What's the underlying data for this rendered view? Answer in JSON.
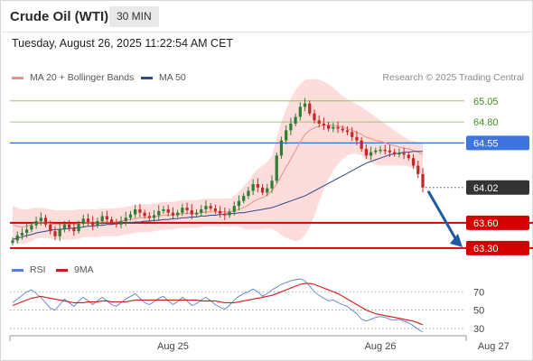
{
  "header": {
    "title": "Crude Oil (WTI)",
    "timeframe": "30 MIN"
  },
  "timestamp": "Tuesday, August 26, 2025 11:22:54 AM CET",
  "legend": {
    "main": [
      {
        "label": "MA 20 + Bollinger Bands",
        "color": "#e9908a"
      },
      {
        "label": "MA 50",
        "color": "#2d4a8c"
      }
    ],
    "rsi": [
      {
        "label": "RSI",
        "color": "#5b7fd6"
      },
      {
        "label": "9MA",
        "color": "#d01c1c"
      }
    ]
  },
  "credit": "Research © 2025 Trading Central",
  "colors": {
    "up": "#2e7d32",
    "down": "#c62828",
    "support": "#d50000",
    "resistance": "#7cbf4b",
    "pivot": "#3a6fd8",
    "band": "#fbd5d2",
    "last": "#333333"
  },
  "chart_data": [
    {
      "type": "candlestick",
      "title": "Crude Oil (WTI)",
      "interval": "30 MIN",
      "x_ticks": [
        "Aug 25",
        "Aug 26",
        "Aug 27"
      ],
      "ylim": [
        63.18,
        65.22
      ],
      "price_levels": [
        {
          "value": 65.05,
          "label": "65.05",
          "kind": "resistance",
          "style": "text"
        },
        {
          "value": 64.8,
          "label": "64.80",
          "kind": "resistance",
          "style": "text"
        },
        {
          "value": 64.55,
          "label": "64.55",
          "kind": "pivot",
          "style": "tag"
        },
        {
          "value": 64.02,
          "label": "64.02",
          "kind": "last",
          "style": "tag"
        },
        {
          "value": 63.6,
          "label": "63.60",
          "kind": "support",
          "style": "tag"
        },
        {
          "value": 63.3,
          "label": "63.30",
          "kind": "support",
          "style": "tag"
        }
      ],
      "forecast": {
        "from": 64.02,
        "to": 63.3
      },
      "close": [
        63.39,
        63.45,
        63.48,
        63.52,
        63.57,
        63.62,
        63.66,
        63.58,
        63.5,
        63.44,
        63.52,
        63.58,
        63.54,
        63.5,
        63.59,
        63.65,
        63.61,
        63.57,
        63.62,
        63.68,
        63.64,
        63.6,
        63.58,
        63.62,
        63.66,
        63.7,
        63.76,
        63.72,
        63.68,
        63.66,
        63.69,
        63.74,
        63.76,
        63.72,
        63.69,
        63.72,
        63.78,
        63.75,
        63.7,
        63.72,
        63.76,
        63.8,
        63.77,
        63.74,
        63.71,
        63.69,
        63.73,
        63.8,
        63.86,
        63.92,
        63.98,
        64.06,
        64.02,
        63.96,
        64.01,
        64.1,
        64.4,
        64.58,
        64.7,
        64.78,
        64.86,
        64.98,
        65.02,
        64.9,
        64.82,
        64.78,
        64.76,
        64.72,
        64.74,
        64.72,
        64.7,
        64.68,
        64.62,
        64.58,
        64.48,
        64.4,
        64.44,
        64.46,
        64.47,
        64.46,
        64.44,
        64.42,
        64.43,
        64.41,
        64.37,
        64.28,
        64.18,
        64.02
      ],
      "ma20": [
        63.58,
        63.56,
        63.55,
        63.56,
        63.58,
        63.6,
        63.6,
        63.6,
        63.59,
        63.58,
        63.58,
        63.58,
        63.58,
        63.58,
        63.59,
        63.6,
        63.6,
        63.6,
        63.6,
        63.61,
        63.61,
        63.61,
        63.61,
        63.62,
        63.63,
        63.64,
        63.65,
        63.66,
        63.66,
        63.66,
        63.67,
        63.68,
        63.69,
        63.69,
        63.69,
        63.7,
        63.71,
        63.71,
        63.71,
        63.71,
        63.72,
        63.73,
        63.73,
        63.73,
        63.73,
        63.73,
        63.73,
        63.74,
        63.76,
        63.78,
        63.81,
        63.85,
        63.88,
        63.9,
        63.93,
        63.98,
        64.06,
        64.16,
        64.26,
        64.36,
        64.46,
        64.56,
        64.65,
        64.7,
        64.73,
        64.75,
        64.76,
        64.76,
        64.76,
        64.75,
        64.74,
        64.72,
        64.7,
        64.68,
        64.65,
        64.62,
        64.6,
        64.58,
        64.57,
        64.55,
        64.53,
        64.52,
        64.5,
        64.49,
        64.48,
        64.46,
        64.44,
        64.41
      ],
      "bb_upper": [
        63.8,
        63.78,
        63.76,
        63.76,
        63.77,
        63.78,
        63.78,
        63.77,
        63.76,
        63.75,
        63.75,
        63.75,
        63.75,
        63.75,
        63.76,
        63.76,
        63.76,
        63.76,
        63.76,
        63.77,
        63.77,
        63.77,
        63.77,
        63.78,
        63.79,
        63.8,
        63.81,
        63.82,
        63.82,
        63.82,
        63.83,
        63.84,
        63.85,
        63.85,
        63.85,
        63.86,
        63.87,
        63.87,
        63.87,
        63.87,
        63.88,
        63.89,
        63.89,
        63.89,
        63.89,
        63.89,
        63.89,
        63.92,
        63.97,
        64.03,
        64.1,
        64.18,
        64.24,
        64.28,
        64.32,
        64.4,
        64.6,
        64.8,
        64.95,
        65.08,
        65.18,
        65.25,
        65.3,
        65.31,
        65.31,
        65.3,
        65.28,
        65.25,
        65.21,
        65.16,
        65.11,
        65.07,
        65.04,
        65.01,
        64.98,
        64.94,
        64.9,
        64.86,
        64.82,
        64.78,
        64.74,
        64.7,
        64.66,
        64.62,
        64.59,
        64.57,
        64.56,
        64.56
      ],
      "bb_lower": [
        63.38,
        63.36,
        63.35,
        63.36,
        63.38,
        63.41,
        63.42,
        63.42,
        63.41,
        63.4,
        63.4,
        63.4,
        63.4,
        63.4,
        63.41,
        63.43,
        63.43,
        63.43,
        63.43,
        63.44,
        63.44,
        63.44,
        63.44,
        63.45,
        63.46,
        63.47,
        63.48,
        63.49,
        63.49,
        63.49,
        63.5,
        63.51,
        63.52,
        63.52,
        63.52,
        63.53,
        63.54,
        63.54,
        63.54,
        63.54,
        63.55,
        63.56,
        63.56,
        63.56,
        63.56,
        63.56,
        63.56,
        63.56,
        63.55,
        63.53,
        63.52,
        63.52,
        63.52,
        63.52,
        63.53,
        63.53,
        63.5,
        63.45,
        63.42,
        63.4,
        63.38,
        63.4,
        63.45,
        63.55,
        63.68,
        63.85,
        64.0,
        64.12,
        64.22,
        64.3,
        64.36,
        64.4,
        64.42,
        64.42,
        64.4,
        64.36,
        64.32,
        64.3,
        64.28,
        64.28,
        64.28,
        64.28,
        64.28,
        64.28,
        64.27,
        64.25,
        64.22,
        64.16
      ],
      "ma50": [
        63.4,
        63.42,
        63.43,
        63.45,
        63.46,
        63.48,
        63.49,
        63.5,
        63.51,
        63.52,
        63.52,
        63.53,
        63.53,
        63.54,
        63.54,
        63.55,
        63.56,
        63.56,
        63.57,
        63.57,
        63.58,
        63.58,
        63.59,
        63.59,
        63.6,
        63.6,
        63.61,
        63.61,
        63.62,
        63.62,
        63.63,
        63.63,
        63.64,
        63.64,
        63.65,
        63.65,
        63.66,
        63.66,
        63.67,
        63.67,
        63.68,
        63.68,
        63.69,
        63.69,
        63.7,
        63.7,
        63.71,
        63.71,
        63.72,
        63.72,
        63.73,
        63.74,
        63.75,
        63.76,
        63.77,
        63.78,
        63.8,
        63.82,
        63.84,
        63.86,
        63.88,
        63.9,
        63.92,
        63.95,
        63.98,
        64.01,
        64.04,
        64.07,
        64.1,
        64.13,
        64.16,
        64.19,
        64.22,
        64.25,
        64.28,
        64.31,
        64.33,
        64.35,
        64.37,
        64.39,
        64.41,
        64.42,
        64.43,
        64.44,
        64.44,
        64.45,
        64.45,
        64.45
      ]
    },
    {
      "type": "line",
      "title": "RSI",
      "ylim": [
        25,
        85
      ],
      "y_ticks": [
        30,
        50,
        70
      ],
      "series": [
        {
          "name": "RSI",
          "values": [
            58,
            62,
            66,
            70,
            72,
            68,
            64,
            58,
            52,
            50,
            56,
            62,
            58,
            54,
            60,
            64,
            60,
            56,
            60,
            64,
            60,
            56,
            54,
            58,
            62,
            65,
            68,
            63,
            58,
            56,
            59,
            63,
            65,
            60,
            56,
            59,
            64,
            60,
            55,
            57,
            61,
            64,
            60,
            56,
            53,
            51,
            55,
            61,
            65,
            68,
            70,
            73,
            70,
            65,
            68,
            72,
            75,
            78,
            80,
            82,
            83,
            84,
            82,
            76,
            70,
            66,
            63,
            60,
            61,
            58,
            56,
            54,
            50,
            46,
            40,
            38,
            40,
            42,
            43,
            42,
            40,
            39,
            40,
            38,
            36,
            33,
            29,
            26
          ]
        },
        {
          "name": "9MA",
          "values": [
            55,
            57,
            59,
            61,
            63,
            64,
            65,
            64,
            63,
            62,
            61,
            60,
            59,
            58,
            58,
            58,
            59,
            59,
            59,
            60,
            60,
            59,
            59,
            59,
            59,
            60,
            61,
            61,
            61,
            61,
            61,
            61,
            61,
            61,
            61,
            61,
            61,
            61,
            61,
            61,
            60,
            60,
            60,
            60,
            59,
            58,
            58,
            58,
            59,
            60,
            61,
            62,
            63,
            64,
            65,
            66,
            68,
            70,
            72,
            74,
            76,
            78,
            79,
            79,
            78,
            76,
            74,
            72,
            70,
            68,
            65,
            62,
            59,
            56,
            53,
            50,
            48,
            46,
            45,
            44,
            43,
            42,
            41,
            40,
            39,
            38,
            36,
            34
          ]
        }
      ]
    }
  ]
}
